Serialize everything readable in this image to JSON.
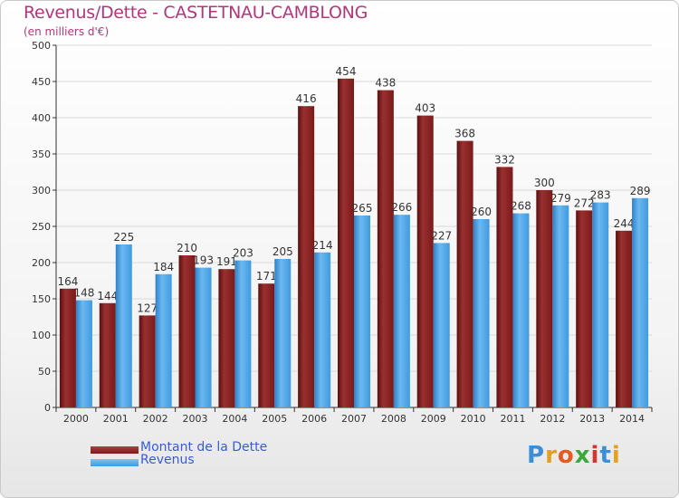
{
  "title": "Revenus/Dette - CASTETNAU-CAMBLONG",
  "subtitle": "(en milliers d'€)",
  "logo": {
    "letters": [
      {
        "ch": "P",
        "color": "#3b8fd9"
      },
      {
        "ch": "r",
        "color": "#e5a020"
      },
      {
        "ch": "o",
        "color": "#e55a20"
      },
      {
        "ch": "x",
        "color": "#3aa83a"
      },
      {
        "ch": "i",
        "color": "#d6352f"
      },
      {
        "ch": "t",
        "color": "#3b8fd9"
      },
      {
        "ch": "i",
        "color": "#e5a020"
      }
    ]
  },
  "colors": {
    "debt": "#7a1a1a",
    "revenue": "#3f9be0",
    "axis": "#333333",
    "grid": "#d9d9d9"
  },
  "chart_data": {
    "type": "bar",
    "title": "Revenus/Dette - CASTETNAU-CAMBLONG",
    "ylabel": "(en milliers d'€)",
    "categories": [
      "2000",
      "2001",
      "2002",
      "2003",
      "2004",
      "2005",
      "2006",
      "2007",
      "2008",
      "2009",
      "2010",
      "2011",
      "2012",
      "2013",
      "2014"
    ],
    "series": [
      {
        "name": "Montant de la Dette",
        "values": [
          164,
          144,
          127,
          210,
          191,
          171,
          416,
          454,
          438,
          403,
          368,
          332,
          300,
          272,
          244
        ]
      },
      {
        "name": "Revenus",
        "values": [
          148,
          225,
          184,
          193,
          203,
          205,
          214,
          265,
          266,
          227,
          260,
          268,
          279,
          283,
          289
        ]
      }
    ],
    "ylim": [
      0,
      500
    ],
    "yticks": [
      0,
      50,
      100,
      150,
      200,
      250,
      300,
      350,
      400,
      450,
      500
    ],
    "grid": true,
    "legend": "bottom-left"
  }
}
